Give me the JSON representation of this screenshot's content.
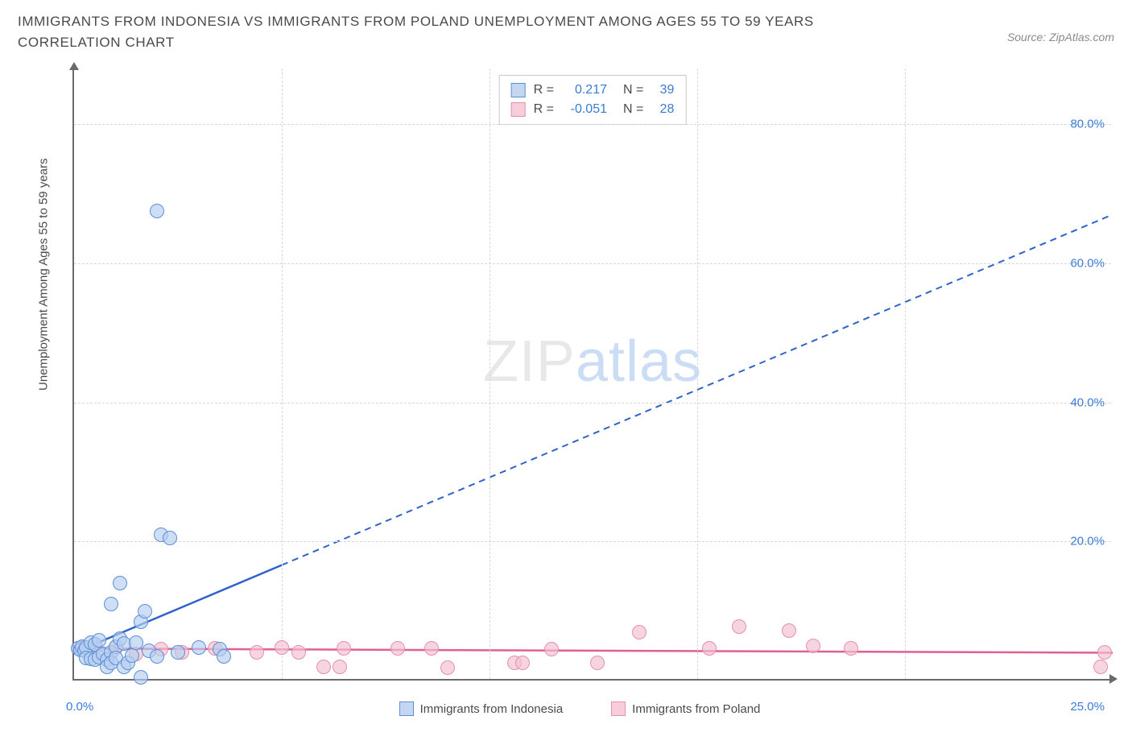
{
  "header": {
    "title": "IMMIGRANTS FROM INDONESIA VS IMMIGRANTS FROM POLAND UNEMPLOYMENT AMONG AGES 55 TO 59 YEARS CORRELATION CHART",
    "source": "Source: ZipAtlas.com"
  },
  "watermark": {
    "part1": "ZIP",
    "part2": "atlas"
  },
  "axes": {
    "y_label": "Unemployment Among Ages 55 to 59 years",
    "x_min": 0,
    "x_max": 25,
    "y_min": 0,
    "y_max": 88,
    "x_ticks": [
      {
        "v": 0,
        "label": "0.0%"
      },
      {
        "v": 25,
        "label": "25.0%"
      }
    ],
    "y_ticks": [
      {
        "v": 20,
        "label": "20.0%"
      },
      {
        "v": 40,
        "label": "40.0%"
      },
      {
        "v": 60,
        "label": "60.0%"
      },
      {
        "v": 80,
        "label": "80.0%"
      }
    ],
    "x_grid": [
      5,
      10,
      15,
      20
    ],
    "y_grid": [
      20,
      40,
      60,
      80
    ]
  },
  "stats_legend": {
    "rows": [
      {
        "swatch_fill": "#c3d7f3",
        "swatch_border": "#5b8fd6",
        "r_label": "R =",
        "r": "0.217",
        "n_label": "N =",
        "n": "39"
      },
      {
        "swatch_fill": "#f6cdd9",
        "swatch_border": "#e48fb0",
        "r_label": "R =",
        "r": "-0.051",
        "n_label": "N =",
        "n": "28"
      }
    ]
  },
  "bottom_legend": {
    "items": [
      {
        "swatch_fill": "#c3d7f3",
        "swatch_border": "#5b8fd6",
        "label": "Immigrants from Indonesia"
      },
      {
        "swatch_fill": "#f6cdd9",
        "swatch_border": "#e48fb0",
        "label": "Immigrants from Poland"
      }
    ]
  },
  "series": {
    "indonesia": {
      "color_fill": "#b6cef0aa",
      "color_stroke": "#5b8fd6",
      "marker_r": 9,
      "points": [
        [
          0.1,
          4.6
        ],
        [
          0.15,
          4.4
        ],
        [
          0.2,
          4.9
        ],
        [
          0.25,
          4.3
        ],
        [
          0.3,
          4.8
        ],
        [
          0.3,
          3.2
        ],
        [
          0.4,
          5.5
        ],
        [
          0.4,
          3.1
        ],
        [
          0.5,
          3.0
        ],
        [
          0.5,
          5.2
        ],
        [
          0.6,
          3.4
        ],
        [
          0.6,
          5.8
        ],
        [
          0.7,
          3.8
        ],
        [
          0.8,
          3.0
        ],
        [
          0.8,
          2.0
        ],
        [
          0.9,
          4.0
        ],
        [
          0.9,
          2.5
        ],
        [
          0.9,
          11.0
        ],
        [
          1.0,
          4.9
        ],
        [
          1.0,
          3.3
        ],
        [
          1.1,
          6.0
        ],
        [
          1.1,
          14.0
        ],
        [
          1.2,
          5.3
        ],
        [
          1.2,
          2.0
        ],
        [
          1.3,
          2.6
        ],
        [
          1.4,
          3.6
        ],
        [
          1.5,
          5.5
        ],
        [
          1.6,
          8.5
        ],
        [
          1.6,
          0.5
        ],
        [
          1.7,
          10.0
        ],
        [
          1.8,
          4.3
        ],
        [
          2.0,
          3.5
        ],
        [
          2.1,
          21.0
        ],
        [
          2.3,
          20.5
        ],
        [
          2.0,
          67.5
        ],
        [
          3.5,
          4.5
        ],
        [
          3.6,
          3.5
        ],
        [
          3.0,
          4.8
        ],
        [
          2.5,
          4.0
        ]
      ],
      "trend": {
        "x1": 0,
        "y1": 4.0,
        "x2": 25,
        "y2": 67.0,
        "solid_until_x": 5.0,
        "color": "#2f63c9"
      }
    },
    "poland": {
      "color_fill": "#f3c0d1aa",
      "color_stroke": "#e48fb0",
      "marker_r": 9,
      "points": [
        [
          0.2,
          4.7
        ],
        [
          0.5,
          4.7
        ],
        [
          1.0,
          4.8
        ],
        [
          1.5,
          3.8
        ],
        [
          2.1,
          4.5
        ],
        [
          2.6,
          4.0
        ],
        [
          3.4,
          4.6
        ],
        [
          4.4,
          4.0
        ],
        [
          5.0,
          4.7
        ],
        [
          5.4,
          4.0
        ],
        [
          6.0,
          2.0
        ],
        [
          6.4,
          2.0
        ],
        [
          6.5,
          4.6
        ],
        [
          7.8,
          4.6
        ],
        [
          8.6,
          4.6
        ],
        [
          9.0,
          1.8
        ],
        [
          10.6,
          2.5
        ],
        [
          10.8,
          2.5
        ],
        [
          11.5,
          4.5
        ],
        [
          12.6,
          2.5
        ],
        [
          13.6,
          7.0
        ],
        [
          15.3,
          4.6
        ],
        [
          16.0,
          7.8
        ],
        [
          17.2,
          7.2
        ],
        [
          17.8,
          5.0
        ],
        [
          18.7,
          4.6
        ],
        [
          24.7,
          2.0
        ],
        [
          24.8,
          4.0
        ]
      ],
      "trend": {
        "x1": 0,
        "y1": 4.6,
        "x2": 25,
        "y2": 4.0,
        "solid_until_x": 25,
        "color": "#e05f94"
      }
    }
  },
  "styles": {
    "background": "#ffffff",
    "axis_color": "#6a6a6a",
    "grid_color": "#d8d8d8",
    "tick_color": "#3a7bd5",
    "title_color": "#4a4a4a"
  }
}
